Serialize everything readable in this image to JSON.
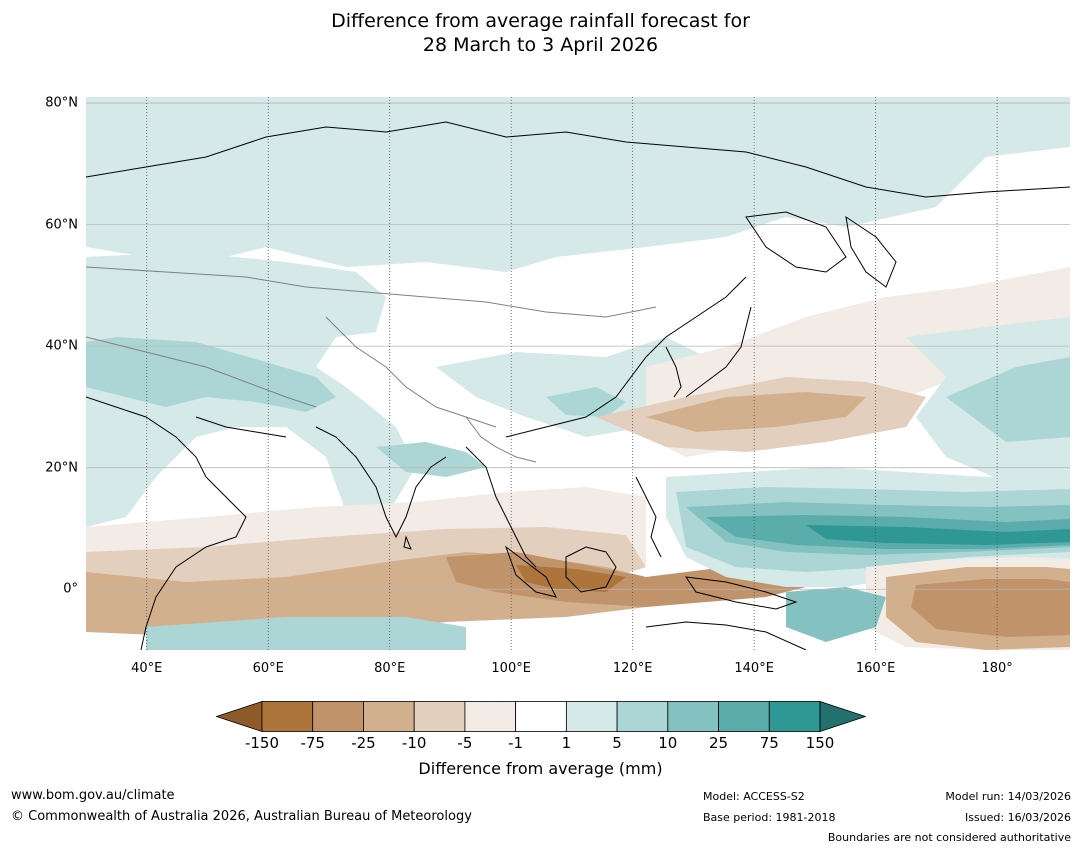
{
  "title": {
    "line1": "Difference from average rainfall forecast for",
    "line2": "28 March to 3 April 2026"
  },
  "map": {
    "lon_range": [
      30,
      192
    ],
    "lat_range": [
      -10,
      81
    ],
    "lat_ticks": [
      {
        "value": 80,
        "label": "80°N"
      },
      {
        "value": 60,
        "label": "60°N"
      },
      {
        "value": 40,
        "label": "40°N"
      },
      {
        "value": 20,
        "label": "20°N"
      },
      {
        "value": 0,
        "label": "0°"
      }
    ],
    "lon_ticks": [
      {
        "value": 40,
        "label": "40°E"
      },
      {
        "value": 60,
        "label": "60°E"
      },
      {
        "value": 80,
        "label": "80°E"
      },
      {
        "value": 100,
        "label": "100°E"
      },
      {
        "value": 120,
        "label": "120°E"
      },
      {
        "value": 140,
        "label": "140°E"
      },
      {
        "value": 160,
        "label": "160°E"
      },
      {
        "value": 180,
        "label": "180°"
      }
    ]
  },
  "colorbar": {
    "title": "Difference from average (mm)",
    "labels": [
      "-150",
      "-75",
      "-25",
      "-10",
      "-5",
      "-1",
      "1",
      "5",
      "10",
      "25",
      "75",
      "150"
    ],
    "under_color": "#8e5a2a",
    "over_color": "#23706c",
    "colors": [
      "#ad743c",
      "#c0936a",
      "#d2b08e",
      "#e3cfbd",
      "#f3ebe5",
      "#ffffff",
      "#d5e9e8",
      "#acd6d5",
      "#83c2c0",
      "#5aadab",
      "#2f9894"
    ]
  },
  "footer": {
    "website": "www.bom.gov.au/climate",
    "copyright": "© Commonwealth of Australia 2026, Australian Bureau of Meteorology",
    "model": "Model: ACCESS-S2",
    "base_period": "Base period: 1981-2018",
    "model_run": "Model run: 14/03/2026",
    "issued": "Issued: 16/03/2026",
    "boundaries_note": "Boundaries are not considered authoritative"
  }
}
